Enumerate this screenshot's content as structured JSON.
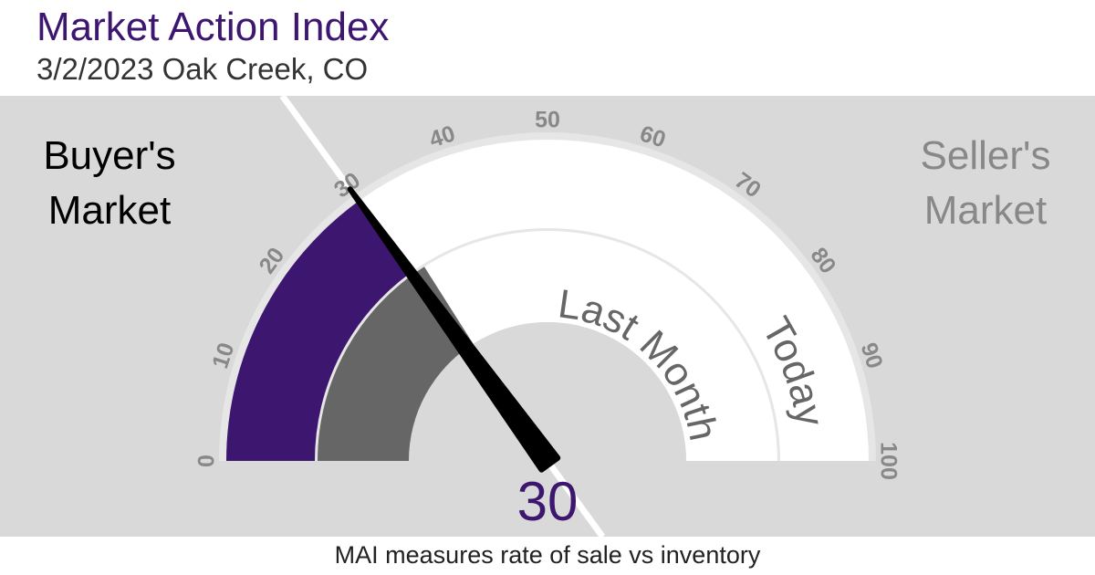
{
  "chart_data": {
    "type": "gauge",
    "title": "Market Action Index",
    "subtitle": "3/2/2023 Oak Creek, CO",
    "value": 30,
    "lim": [
      0,
      100
    ],
    "ticks": [
      0,
      10,
      20,
      30,
      40,
      50,
      60,
      70,
      80,
      90,
      100
    ],
    "series": [
      {
        "name": "Today",
        "value": 30,
        "color": "#3d1670"
      },
      {
        "name": "Last Month",
        "value": 32,
        "color": "#666666"
      }
    ],
    "left_label": [
      "Buyer's",
      "Market"
    ],
    "right_label": [
      "Seller's",
      "Market"
    ],
    "footnote": "MAI measures rate of sale vs inventory"
  }
}
